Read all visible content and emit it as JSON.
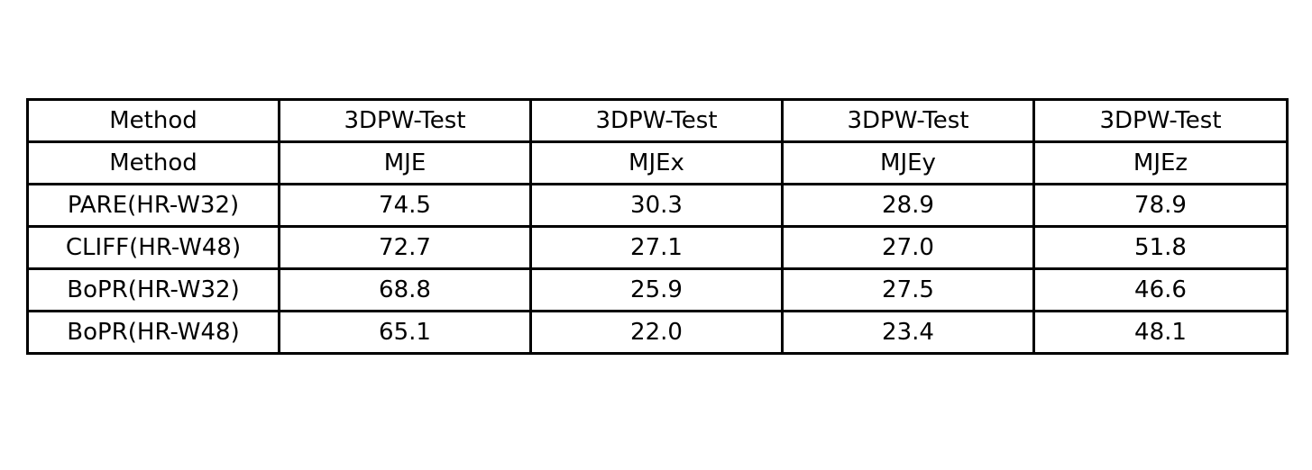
{
  "chart_data": {
    "type": "table",
    "header_rows": [
      [
        "Method",
        "3DPW-Test",
        "3DPW-Test",
        "3DPW-Test",
        "3DPW-Test"
      ],
      [
        "Method",
        "MJE",
        "MJEx",
        "MJEy",
        "MJEz"
      ]
    ],
    "rows": [
      [
        "PARE(HR-W32)",
        "74.5",
        "30.3",
        "28.9",
        "78.9"
      ],
      [
        "CLIFF(HR-W48)",
        "72.7",
        "27.1",
        "27.0",
        "51.8"
      ],
      [
        "BoPR(HR-W32)",
        "68.8",
        "25.9",
        "27.5",
        "46.6"
      ],
      [
        "BoPR(HR-W48)",
        "65.1",
        "22.0",
        "23.4",
        "48.1"
      ]
    ]
  }
}
